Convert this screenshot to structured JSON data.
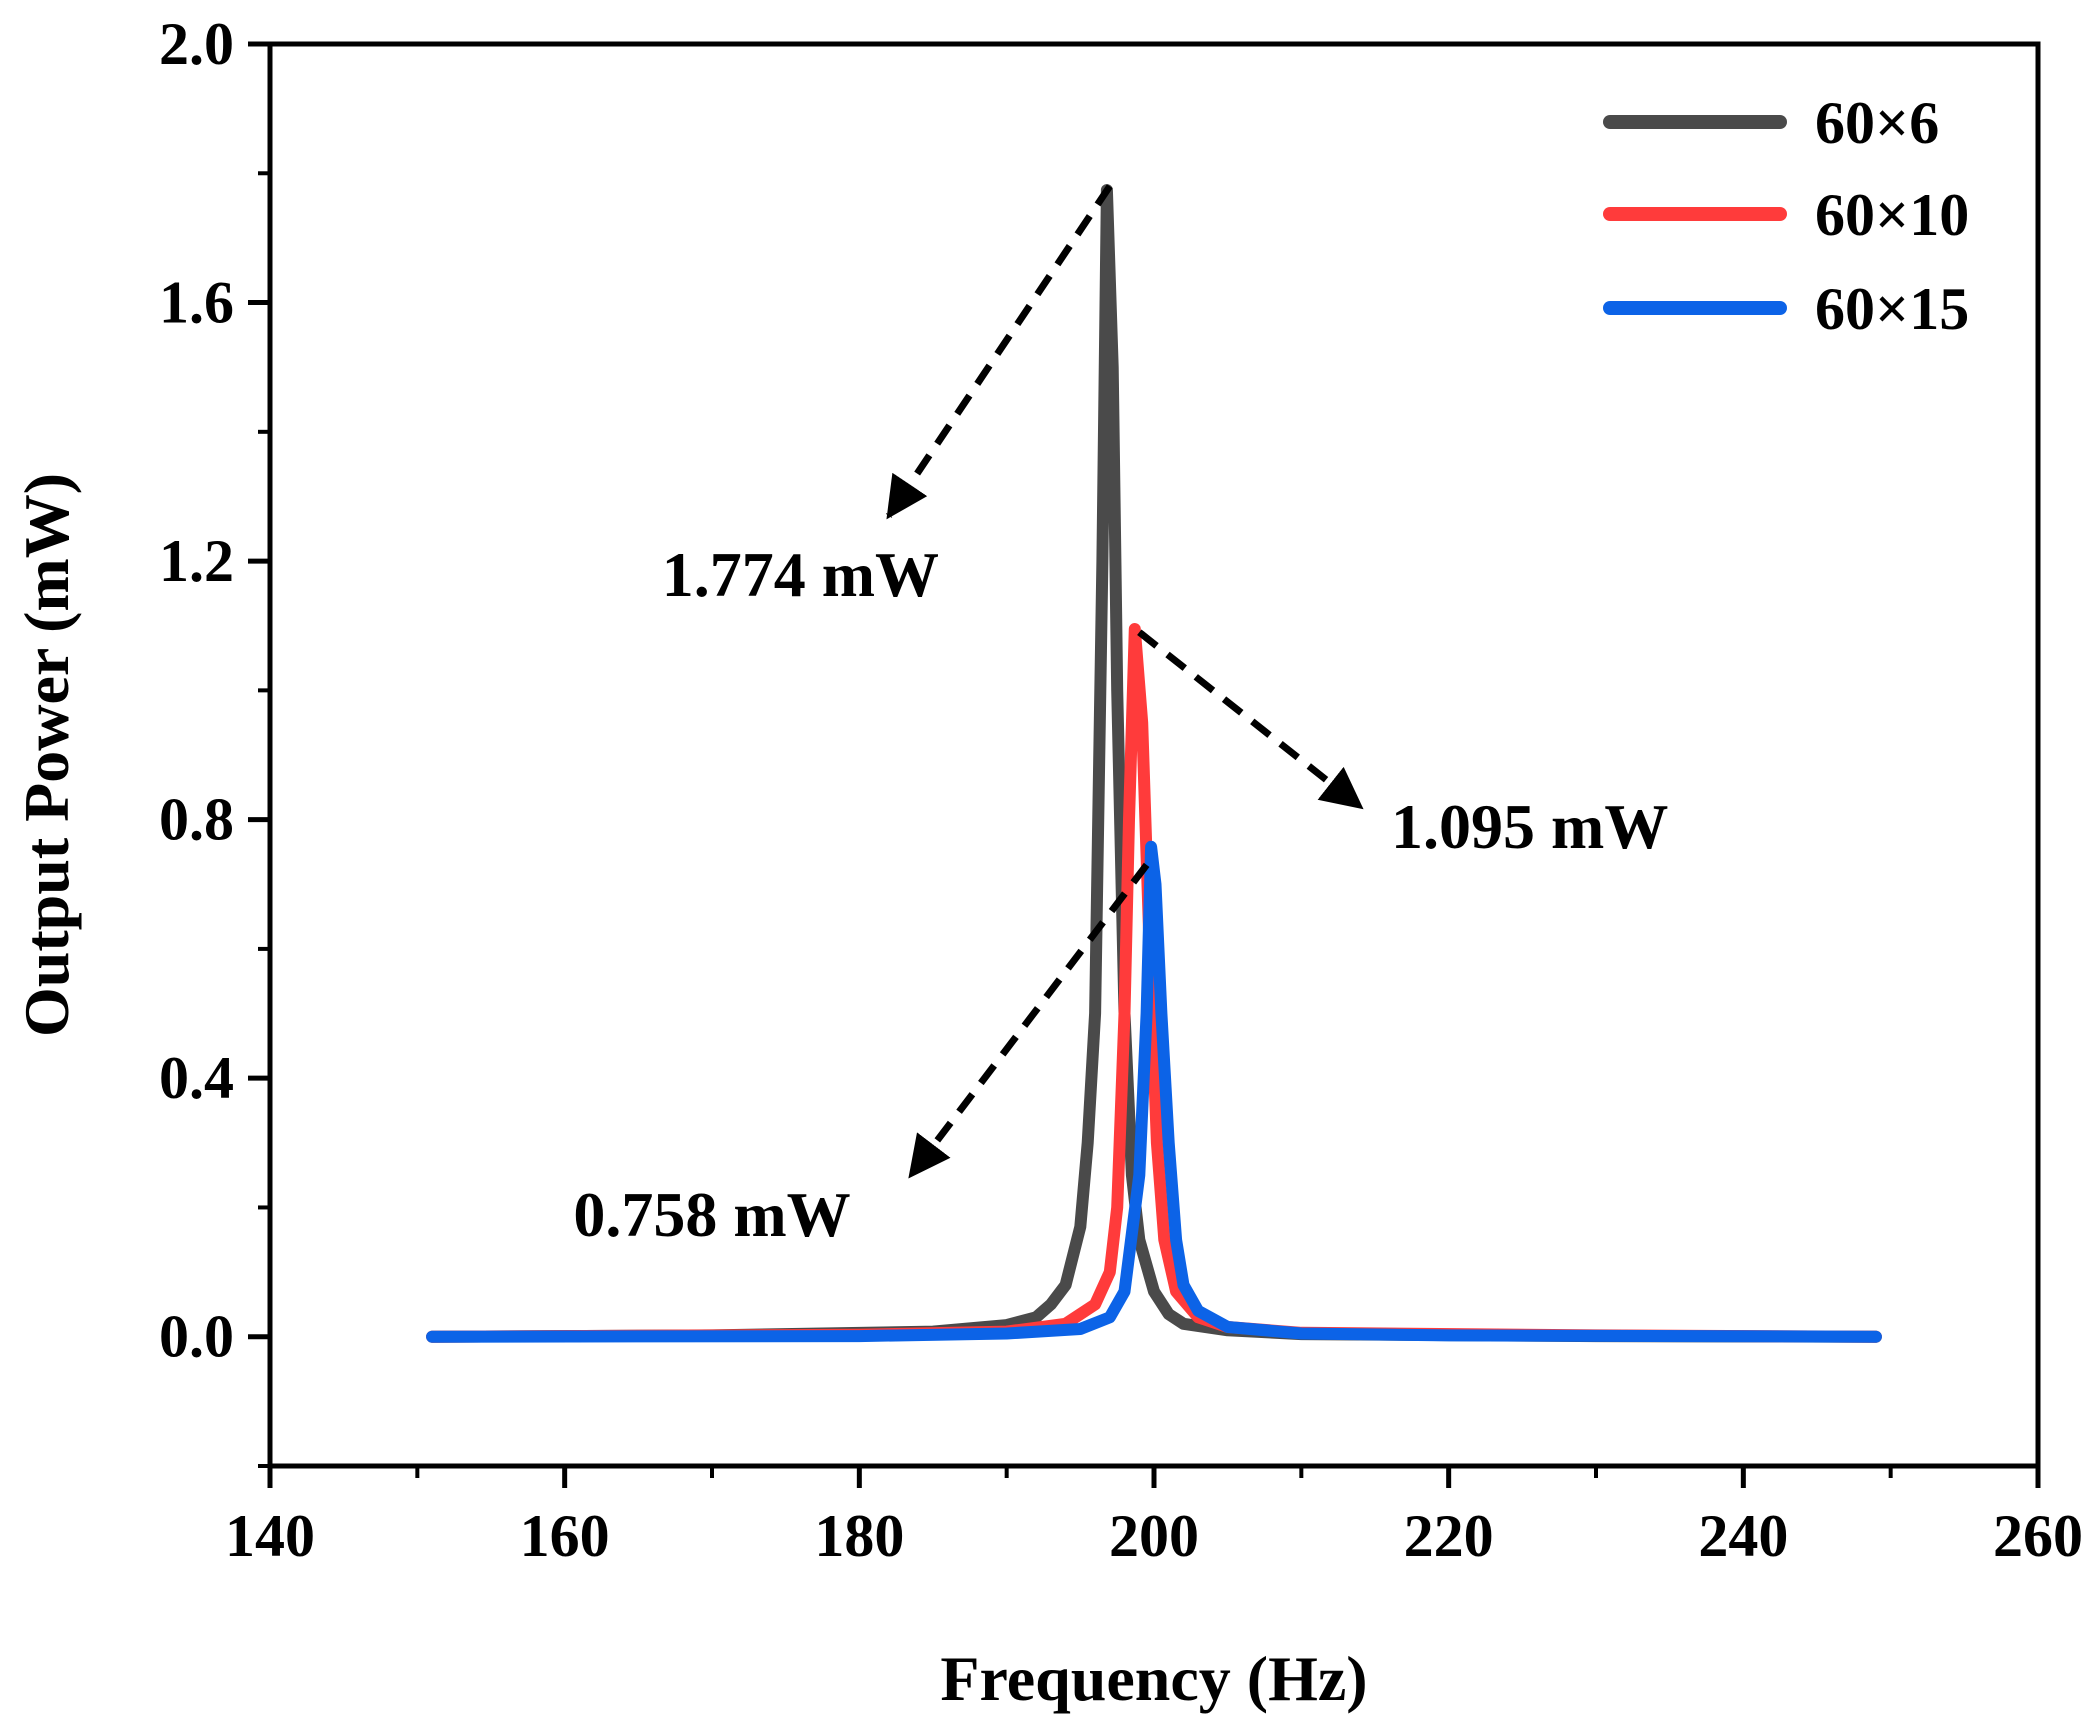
{
  "chart_data": {
    "type": "line",
    "title": "",
    "xlabel": "Frequency (Hz)",
    "ylabel": "Output Power  (mW)",
    "xlim": [
      140,
      260
    ],
    "ylim": [
      -0.2,
      2.0
    ],
    "xticks": [
      140,
      160,
      180,
      200,
      220,
      240,
      260
    ],
    "xtick_labels": [
      "140",
      "160",
      "180",
      "200",
      "220",
      "240",
      "260"
    ],
    "yticks": [
      0.0,
      0.4,
      0.8,
      1.2,
      1.6,
      2.0
    ],
    "ytick_labels": [
      "0.0",
      "0.4",
      "0.8",
      "1.2",
      "1.6",
      "2.0"
    ],
    "grid": false,
    "legend_position": "top-right",
    "series": [
      {
        "name": "60×6",
        "color": "#4a4a4a",
        "x": [
          151,
          170,
          185,
          190,
          192,
          193,
          194,
          195,
          195.5,
          196,
          196.5,
          196.8,
          197.2,
          197.5,
          198,
          198.5,
          199,
          200,
          201,
          202,
          205,
          210,
          230,
          249
        ],
        "y": [
          0,
          0.002,
          0.008,
          0.018,
          0.03,
          0.05,
          0.08,
          0.17,
          0.3,
          0.5,
          1.2,
          1.774,
          1.5,
          1.0,
          0.5,
          0.25,
          0.15,
          0.07,
          0.035,
          0.02,
          0.01,
          0.004,
          0.001,
          0
        ]
      },
      {
        "name": "60×10",
        "color": "#ff3b3b",
        "x": [
          151,
          180,
          190,
          194,
          196,
          197,
          197.5,
          198,
          198.3,
          198.7,
          199.2,
          199.7,
          200.2,
          200.7,
          201.5,
          203,
          205,
          210,
          230,
          249
        ],
        "y": [
          0,
          0.003,
          0.008,
          0.02,
          0.05,
          0.1,
          0.2,
          0.5,
          0.8,
          1.095,
          0.95,
          0.6,
          0.3,
          0.15,
          0.07,
          0.03,
          0.015,
          0.006,
          0.002,
          0
        ]
      },
      {
        "name": "60×15",
        "color": "#0c63e7",
        "x": [
          151,
          180,
          190,
          195,
          197,
          198,
          199,
          199.5,
          199.8,
          200.1,
          200.5,
          201,
          201.5,
          202,
          203,
          205,
          210,
          220,
          249
        ],
        "y": [
          0,
          0.001,
          0.005,
          0.012,
          0.03,
          0.07,
          0.25,
          0.5,
          0.758,
          0.7,
          0.5,
          0.3,
          0.15,
          0.08,
          0.04,
          0.015,
          0.005,
          0.002,
          0
        ]
      }
    ],
    "annotations": [
      {
        "text": "1.774 mW",
        "point": [
          197,
          1.78
        ],
        "arrow_to": [
          182,
          1.27
        ],
        "text_at": [
          176,
          1.18
        ]
      },
      {
        "text": "1.095 mW",
        "point": [
          199,
          1.09
        ],
        "arrow_to": [
          214,
          0.82
        ],
        "text_at": [
          225.5,
          0.79
        ]
      },
      {
        "text": "0.758 mW",
        "point": [
          199.5,
          0.73
        ],
        "arrow_to": [
          183.5,
          0.25
        ],
        "text_at": [
          170,
          0.19
        ]
      }
    ]
  }
}
